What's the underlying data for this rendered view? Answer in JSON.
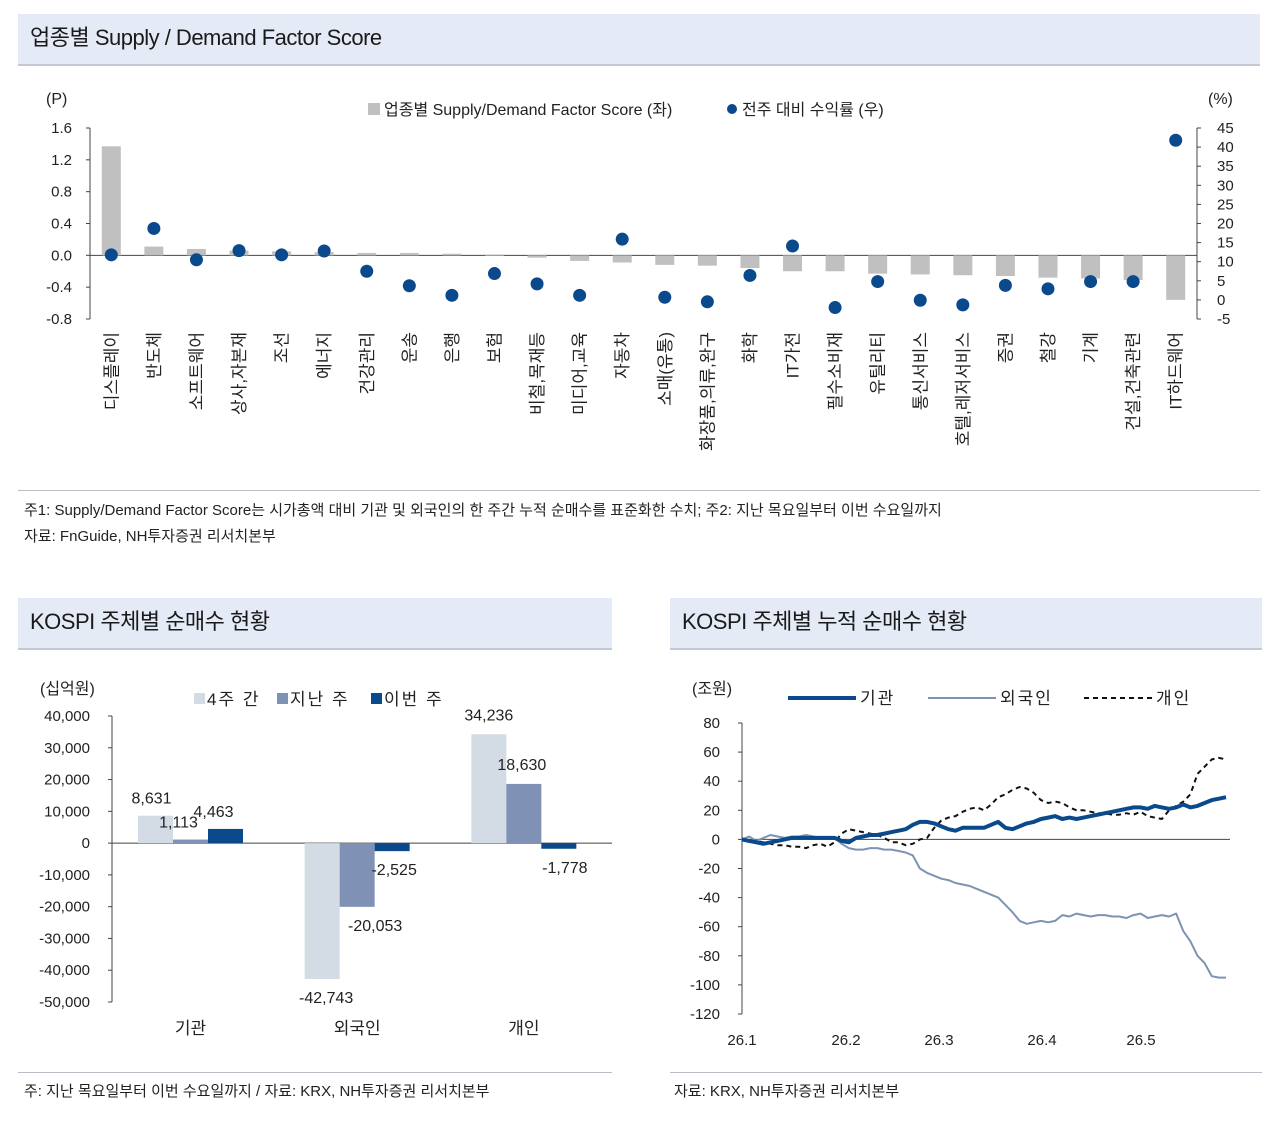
{
  "top": {
    "title": "업종별 Supply / Demand Factor Score",
    "note1": "주1: Supply/Demand Factor Score는 시가총액 대비 기관 및 외국인의 한 주간 누적 순매수를 표준화한 수치; 주2: 지난 목요일부터 이번 수요일까지",
    "note2": "자료: FnGuide, NH투자증권 리서치본부"
  },
  "left": {
    "title": "KOSPI 주체별 순매수 현황",
    "note": "주: 지난 목요일부터 이번 수요일까지 / 자료: KRX, NH투자증권 리서치본부"
  },
  "right": {
    "title": "KOSPI 주체별 누적 순매수 현황",
    "note": "자료: KRX, NH투자증권 리서치본부"
  },
  "chart_data": [
    {
      "type": "bar",
      "title": "업종별 Supply / Demand Factor Score",
      "ylabel": "(P)",
      "y2label": "(%)",
      "ylim": [
        -0.8,
        1.6
      ],
      "yticks": [
        "1.6",
        "1.2",
        "0.8",
        "0.4",
        "0.0",
        "-0.4",
        "-0.8"
      ],
      "y2lim": [
        -5,
        45
      ],
      "y2ticks": [
        "45",
        "40",
        "35",
        "30",
        "25",
        "20",
        "15",
        "10",
        "5",
        "0",
        "-5"
      ],
      "legend_position": "top-center",
      "categories": [
        "디스플레이",
        "반도체",
        "소프트웨어",
        "상사,자본재",
        "조선",
        "에너지",
        "건강관리",
        "운송",
        "은행",
        "보험",
        "비철,목재등",
        "미디어,교육",
        "자동차",
        "소매(유통)",
        "화장품,의류,완구",
        "화학",
        "IT가전",
        "필수소비재",
        "유틸리티",
        "통신서비스",
        "호텔,레저서비스",
        "증권",
        "철강",
        "기계",
        "건설,건축관련",
        "IT하드웨어"
      ],
      "series": [
        {
          "name": "업종별 Supply/Demand Factor Score (좌)",
          "kind": "bar",
          "color": "#c0c0c0",
          "values": [
            1.37,
            0.11,
            0.08,
            0.06,
            0.05,
            0.04,
            0.03,
            0.03,
            0.02,
            0.01,
            -0.03,
            -0.07,
            -0.09,
            -0.12,
            -0.13,
            -0.16,
            -0.2,
            -0.2,
            -0.23,
            -0.24,
            -0.25,
            -0.26,
            -0.28,
            -0.29,
            -0.31,
            -0.56
          ]
        },
        {
          "name": "전주 대비 수익률 (우)",
          "kind": "dot",
          "color": "#0a4a8c",
          "values": [
            11.8,
            18.7,
            10.5,
            12.9,
            11.8,
            12.8,
            7.5,
            3.7,
            1.2,
            6.9,
            4.2,
            1.2,
            15.9,
            0.7,
            -0.5,
            6.4,
            14.1,
            -2.0,
            4.8,
            -0.1,
            -1.3,
            3.8,
            2.9,
            4.8,
            4.8,
            41.8
          ]
        }
      ]
    },
    {
      "type": "bar",
      "title": "KOSPI 주체별 순매수 현황",
      "ylabel": "(십억원)",
      "ylim": [
        -50000,
        40000
      ],
      "yticks": [
        "40,000",
        "30,000",
        "20,000",
        "10,000",
        "0",
        "-10,000",
        "-20,000",
        "-30,000",
        "-40,000",
        "-50,000"
      ],
      "legend_position": "top-center",
      "categories": [
        "기관",
        "외국인",
        "개인"
      ],
      "series": [
        {
          "name": "4주간",
          "color": "#d3dbe5",
          "values": [
            8631,
            -42743,
            34236
          ],
          "labels": [
            "8,631",
            "-42,743",
            "34,236"
          ]
        },
        {
          "name": "지난주",
          "color": "#8091b6",
          "values": [
            1113,
            -20053,
            18630
          ],
          "labels": [
            "1,113",
            "-20,053",
            "18,630"
          ]
        },
        {
          "name": "이번주",
          "color": "#0a4a8c",
          "values": [
            4463,
            -2525,
            -1778
          ],
          "labels": [
            "4,463",
            "-2,525",
            "-1,778"
          ]
        }
      ]
    },
    {
      "type": "line",
      "title": "KOSPI 주체별 누적 순매수 현황",
      "ylabel": "(조원)",
      "ylim": [
        -120,
        80
      ],
      "yticks": [
        "80",
        "60",
        "40",
        "20",
        "0",
        "-20",
        "-40",
        "-60",
        "-80",
        "-100",
        "-120"
      ],
      "xticks": [
        "26.1",
        "26.2",
        "26.3",
        "26.4",
        "26.5"
      ],
      "legend_position": "top-center",
      "series": [
        {
          "name": "기관",
          "color": "#0a4a8c",
          "style": "solid-thick",
          "values": [
            0,
            -1,
            -2,
            -3,
            -2,
            -1,
            0,
            1,
            1,
            1,
            1,
            1,
            1,
            1,
            -1,
            -2,
            1,
            2,
            3,
            3,
            4,
            5,
            6,
            7,
            10,
            12,
            12,
            11,
            9,
            7,
            6,
            8,
            8,
            8,
            8,
            10,
            12,
            8,
            7,
            9,
            11,
            12,
            14,
            15,
            16,
            14,
            15,
            14,
            15,
            16,
            17,
            18,
            19,
            20,
            21,
            22,
            22,
            21,
            23,
            22,
            21,
            22,
            24,
            22,
            23,
            25,
            27,
            28,
            29
          ]
        },
        {
          "name": "외국인",
          "color": "#7d93b3",
          "style": "solid-thin",
          "values": [
            0,
            2,
            -1,
            1,
            3,
            2,
            1,
            2,
            2,
            3,
            2,
            1,
            1,
            1,
            -3,
            -6,
            -7,
            -7,
            -6,
            -6,
            -7,
            -7,
            -8,
            -9,
            -11,
            -20,
            -23,
            -25,
            -27,
            -28,
            -30,
            -31,
            -32,
            -34,
            -36,
            -38,
            -40,
            -45,
            -50,
            -56,
            -58,
            -57,
            -56,
            -57,
            -56,
            -52,
            -53,
            -51,
            -52,
            -53,
            -52,
            -52,
            -53,
            -53,
            -54,
            -52,
            -51,
            -54,
            -53,
            -52,
            -53,
            -51,
            -63,
            -70,
            -80,
            -85,
            -94,
            -95,
            -95
          ]
        },
        {
          "name": "개인",
          "color": "#111111",
          "style": "dashed",
          "values": [
            0,
            -1,
            -1,
            -2,
            -3,
            -4,
            -4,
            -5,
            -5,
            -6,
            -4,
            -3,
            -5,
            -2,
            4,
            7,
            6,
            5,
            4,
            3,
            1,
            -2,
            -2,
            -4,
            -3,
            0,
            1,
            8,
            13,
            15,
            16,
            19,
            21,
            22,
            20,
            24,
            29,
            31,
            34,
            36,
            35,
            32,
            27,
            25,
            26,
            25,
            22,
            20,
            20,
            19,
            18,
            18,
            17,
            17,
            18,
            17,
            19,
            16,
            15,
            14,
            20,
            23,
            26,
            31,
            45,
            50,
            55,
            56,
            55
          ]
        }
      ]
    }
  ]
}
